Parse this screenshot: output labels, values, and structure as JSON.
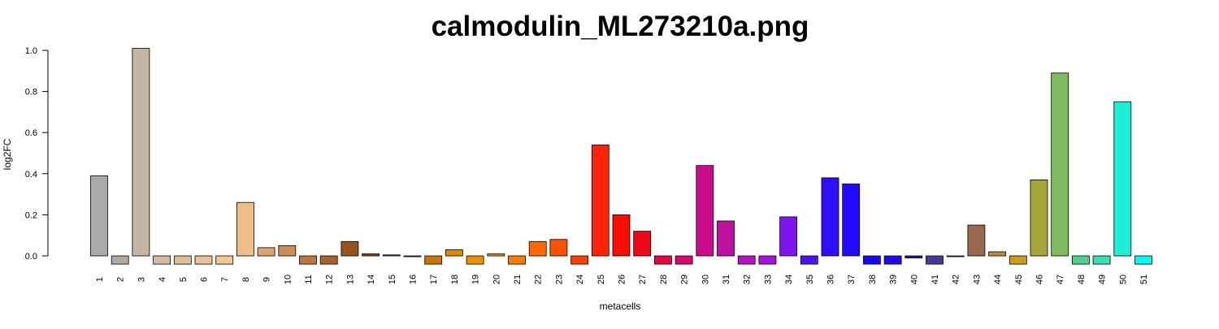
{
  "chart_data": {
    "type": "bar",
    "title": "calmodulin_ML273210a.png",
    "xlabel": "metacells",
    "ylabel": "log2FC",
    "ylim": [
      0,
      1.0
    ],
    "yticks": [
      "0.0",
      "0.2",
      "0.4",
      "0.6",
      "0.8",
      "1.0"
    ],
    "grid": false,
    "legend": "none",
    "categories": [
      "1",
      "2",
      "3",
      "4",
      "5",
      "6",
      "7",
      "8",
      "9",
      "10",
      "11",
      "12",
      "13",
      "14",
      "15",
      "16",
      "17",
      "18",
      "19",
      "20",
      "21",
      "22",
      "23",
      "24",
      "25",
      "26",
      "27",
      "28",
      "29",
      "30",
      "31",
      "32",
      "33",
      "34",
      "35",
      "36",
      "37",
      "38",
      "39",
      "40",
      "41",
      "42",
      "43",
      "44",
      "45",
      "46",
      "47",
      "48",
      "49",
      "50",
      "51"
    ],
    "values": [
      0.39,
      -0.04,
      1.01,
      -0.04,
      -0.04,
      -0.04,
      -0.04,
      0.26,
      0.04,
      0.05,
      -0.04,
      -0.04,
      0.07,
      0.01,
      0.005,
      -0.004,
      -0.04,
      0.03,
      -0.04,
      0.01,
      -0.04,
      0.07,
      0.08,
      -0.04,
      0.54,
      0.2,
      0.12,
      -0.04,
      -0.04,
      0.44,
      0.17,
      -0.04,
      -0.04,
      0.19,
      -0.04,
      0.38,
      0.35,
      -0.04,
      -0.04,
      -0.01,
      -0.04,
      -0.002,
      0.15,
      0.02,
      -0.04,
      0.37,
      0.89,
      -0.04,
      -0.04,
      0.75,
      -0.04
    ],
    "colors": [
      "#aaaaaa",
      "#b0a89e",
      "#c4b5a3",
      "#d2bba0",
      "#dcbf9c",
      "#e6c39a",
      "#f2c88f",
      "#efbf8a",
      "#d9a570",
      "#cc8d58",
      "#b9763f",
      "#a8622d",
      "#955222",
      "#8a4519",
      "#914816",
      "#9b4b10",
      "#c97707",
      "#de8a0b",
      "#e98f00",
      "#f09402",
      "#fa7d00",
      "#ff6a00",
      "#fa5200",
      "#ff3f00",
      "#ff2405",
      "#fc0b01",
      "#f2061a",
      "#e40840",
      "#d8086c",
      "#c90c8c",
      "#bf119f",
      "#b215c0",
      "#a514d8",
      "#7f14ee",
      "#4e12f5",
      "#2f0ffa",
      "#220bff",
      "#1706fa",
      "#1c0cea",
      "#2113c8",
      "#49389c",
      "#6d5a70",
      "#98684e",
      "#b98b3a",
      "#cc9d18",
      "#a5a53a",
      "#7fba5f",
      "#4fcf8c",
      "#35e0b1",
      "#1fefd8",
      "#0ef6f1"
    ]
  }
}
